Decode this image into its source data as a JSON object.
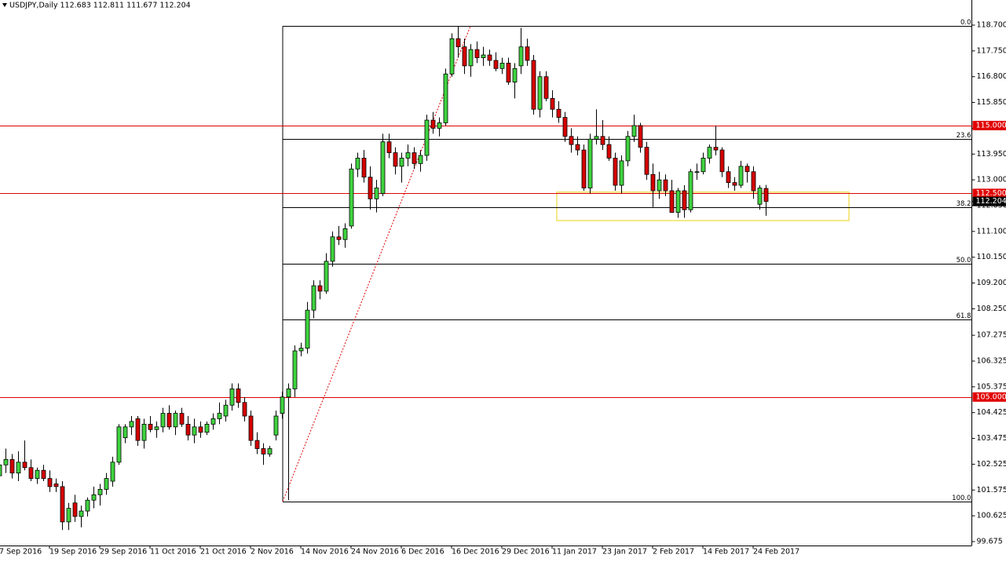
{
  "chart_data": {
    "type": "candlestick",
    "title": "USDJPY,Daily  112.683 112.811 111.677 112.204",
    "up_color": "#3fd33f",
    "down_color": "#d60000",
    "categories": [
      "7 Sep 2016",
      null,
      null,
      null,
      null,
      null,
      null,
      null,
      "19 Sep 2016",
      null,
      null,
      null,
      null,
      null,
      null,
      null,
      "29 Sep 2016",
      null,
      null,
      null,
      null,
      null,
      null,
      null,
      "11 Oct 2016",
      null,
      null,
      null,
      null,
      null,
      null,
      null,
      "21 Oct 2016",
      null,
      null,
      null,
      null,
      null,
      null,
      null,
      "2 Nov 2016",
      null,
      null,
      null,
      null,
      null,
      null,
      null,
      "14 Nov 2016",
      null,
      null,
      null,
      null,
      null,
      null,
      null,
      "24 Nov 2016",
      null,
      null,
      null,
      null,
      null,
      null,
      null,
      "6 Dec 2016",
      null,
      null,
      null,
      null,
      null,
      null,
      null,
      "16 Dec 2016",
      null,
      null,
      null,
      null,
      null,
      null,
      null,
      "29 Dec 2016",
      null,
      null,
      null,
      null,
      null,
      null,
      null,
      "11 Jan 2017",
      null,
      null,
      null,
      null,
      null,
      null,
      null,
      "23 Jan 2017",
      null,
      null,
      null,
      null,
      null,
      null,
      null,
      "2 Feb 2017",
      null,
      null,
      null,
      null,
      null,
      null,
      null,
      "14 Feb 2017",
      null,
      null,
      null,
      null,
      null,
      null,
      null,
      "24 Feb 2017",
      null,
      null
    ],
    "ohlc": [
      [
        102.1,
        102.7,
        101.8,
        102.5
      ],
      [
        102.5,
        103.1,
        102.2,
        102.7
      ],
      [
        102.7,
        102.9,
        102.0,
        102.2
      ],
      [
        102.2,
        103.0,
        101.9,
        102.6
      ],
      [
        102.6,
        103.4,
        102.3,
        102.4
      ],
      [
        102.4,
        102.7,
        101.9,
        102.0
      ],
      [
        102.0,
        102.4,
        101.8,
        102.3
      ],
      [
        102.3,
        102.5,
        101.9,
        102.0
      ],
      [
        102.0,
        102.3,
        101.5,
        101.7
      ],
      [
        101.8,
        102.0,
        101.5,
        101.7
      ],
      [
        101.7,
        101.9,
        100.1,
        100.4
      ],
      [
        100.4,
        101.1,
        100.1,
        100.9
      ],
      [
        101.1,
        101.4,
        100.4,
        100.6
      ],
      [
        100.6,
        101.0,
        100.2,
        100.8
      ],
      [
        100.8,
        101.3,
        100.6,
        101.2
      ],
      [
        101.2,
        101.7,
        100.9,
        101.4
      ],
      [
        101.4,
        101.8,
        101.0,
        101.6
      ],
      [
        101.6,
        102.2,
        101.4,
        102.0
      ],
      [
        101.9,
        102.8,
        101.7,
        102.6
      ],
      [
        102.6,
        104.0,
        102.5,
        103.9
      ],
      [
        103.5,
        104.0,
        103.3,
        103.9
      ],
      [
        103.9,
        104.3,
        103.6,
        104.1
      ],
      [
        104.2,
        104.3,
        103.2,
        103.4
      ],
      [
        103.4,
        104.2,
        103.1,
        104.0
      ],
      [
        104.0,
        104.3,
        103.7,
        103.8
      ],
      [
        103.8,
        104.1,
        103.5,
        103.9
      ],
      [
        103.9,
        104.6,
        103.7,
        104.4
      ],
      [
        104.4,
        104.7,
        103.8,
        103.9
      ],
      [
        103.9,
        104.5,
        103.6,
        104.4
      ],
      [
        104.4,
        104.6,
        103.9,
        104.0
      ],
      [
        104.0,
        104.3,
        103.4,
        103.6
      ],
      [
        103.6,
        104.2,
        103.3,
        103.9
      ],
      [
        103.9,
        104.1,
        103.5,
        103.7
      ],
      [
        103.7,
        104.1,
        103.6,
        104.0
      ],
      [
        104.0,
        104.4,
        103.8,
        104.2
      ],
      [
        104.2,
        104.8,
        104.0,
        104.4
      ],
      [
        104.3,
        104.9,
        104.1,
        104.7
      ],
      [
        104.7,
        105.5,
        104.5,
        105.3
      ],
      [
        105.3,
        105.5,
        104.6,
        104.8
      ],
      [
        104.8,
        105.0,
        104.1,
        104.3
      ],
      [
        104.3,
        104.5,
        103.2,
        103.4
      ],
      [
        103.4,
        103.7,
        102.9,
        103.1
      ],
      [
        103.1,
        103.3,
        102.5,
        102.9
      ],
      [
        102.9,
        103.2,
        102.8,
        103.1
      ],
      [
        103.6,
        104.5,
        103.4,
        104.3
      ],
      [
        104.4,
        105.2,
        104.2,
        105.0
      ],
      [
        105.0,
        105.5,
        101.2,
        105.3
      ],
      [
        105.3,
        106.9,
        105.0,
        106.7
      ],
      [
        106.7,
        107.0,
        106.5,
        106.8
      ],
      [
        106.8,
        108.5,
        106.6,
        108.2
      ],
      [
        108.2,
        109.3,
        107.9,
        109.1
      ],
      [
        109.1,
        109.3,
        108.6,
        108.9
      ],
      [
        108.9,
        110.3,
        108.8,
        110.0
      ],
      [
        110.0,
        111.1,
        109.8,
        110.9
      ],
      [
        110.9,
        111.3,
        110.6,
        110.8
      ],
      [
        110.8,
        111.4,
        110.5,
        111.2
      ],
      [
        111.3,
        113.6,
        111.2,
        113.4
      ],
      [
        113.4,
        114.0,
        113.1,
        113.8
      ],
      [
        113.8,
        114.1,
        112.9,
        113.1
      ],
      [
        113.1,
        113.5,
        111.9,
        112.3
      ],
      [
        112.3,
        113.0,
        111.8,
        112.7
      ],
      [
        112.5,
        114.7,
        112.4,
        114.4
      ],
      [
        114.4,
        114.7,
        113.8,
        114.0
      ],
      [
        114.0,
        114.2,
        113.2,
        113.5
      ],
      [
        113.5,
        114.0,
        112.9,
        113.8
      ],
      [
        113.8,
        114.3,
        113.5,
        114.0
      ],
      [
        114.0,
        114.2,
        113.4,
        113.6
      ],
      [
        113.6,
        114.1,
        113.3,
        113.9
      ],
      [
        113.9,
        115.4,
        113.7,
        115.2
      ],
      [
        115.2,
        115.5,
        114.7,
        114.9
      ],
      [
        114.9,
        115.3,
        114.6,
        115.1
      ],
      [
        115.1,
        117.1,
        115.0,
        116.9
      ],
      [
        116.9,
        118.4,
        116.8,
        118.2
      ],
      [
        118.2,
        118.66,
        117.5,
        117.9
      ],
      [
        117.9,
        118.2,
        116.9,
        117.2
      ],
      [
        117.2,
        118.0,
        116.8,
        117.8
      ],
      [
        117.8,
        118.1,
        117.3,
        117.5
      ],
      [
        117.5,
        117.9,
        117.2,
        117.6
      ],
      [
        117.6,
        117.8,
        117.2,
        117.4
      ],
      [
        117.4,
        117.7,
        117.0,
        117.1
      ],
      [
        117.1,
        117.5,
        116.9,
        117.3
      ],
      [
        117.3,
        117.5,
        116.5,
        116.6
      ],
      [
        116.6,
        117.3,
        116.0,
        117.1
      ],
      [
        117.2,
        118.6,
        116.9,
        117.9
      ],
      [
        117.9,
        118.2,
        117.2,
        117.4
      ],
      [
        117.4,
        117.6,
        115.4,
        115.6
      ],
      [
        115.6,
        117.0,
        115.3,
        116.8
      ],
      [
        116.8,
        117.0,
        115.9,
        116.0
      ],
      [
        116.0,
        116.3,
        115.3,
        115.6
      ],
      [
        115.6,
        115.9,
        115.1,
        115.3
      ],
      [
        115.3,
        115.5,
        114.4,
        114.6
      ],
      [
        114.6,
        114.9,
        114.0,
        114.3
      ],
      [
        114.3,
        114.6,
        113.9,
        114.1
      ],
      [
        114.1,
        114.3,
        112.6,
        112.7
      ],
      [
        112.7,
        114.7,
        112.5,
        114.5
      ],
      [
        114.5,
        115.6,
        114.3,
        114.6
      ],
      [
        114.6,
        115.2,
        114.1,
        114.3
      ],
      [
        114.3,
        114.6,
        113.7,
        113.8
      ],
      [
        113.8,
        114.0,
        112.6,
        112.8
      ],
      [
        112.8,
        113.9,
        112.5,
        113.7
      ],
      [
        113.7,
        114.8,
        113.5,
        114.6
      ],
      [
        114.6,
        115.4,
        114.4,
        115.0
      ],
      [
        115.0,
        115.1,
        114.0,
        114.2
      ],
      [
        114.2,
        114.4,
        113.0,
        113.2
      ],
      [
        113.2,
        113.6,
        112.0,
        112.6
      ],
      [
        112.6,
        113.3,
        112.3,
        113.0
      ],
      [
        113.0,
        113.2,
        112.4,
        112.6
      ],
      [
        112.6,
        113.0,
        111.8,
        111.8
      ],
      [
        111.8,
        112.7,
        111.6,
        112.6
      ],
      [
        112.6,
        112.8,
        111.6,
        111.9
      ],
      [
        111.9,
        113.4,
        111.8,
        113.3
      ],
      [
        113.3,
        113.6,
        113.0,
        113.3
      ],
      [
        113.3,
        114.0,
        113.2,
        113.8
      ],
      [
        113.8,
        114.3,
        113.6,
        114.2
      ],
      [
        114.2,
        115.0,
        113.9,
        114.1
      ],
      [
        114.1,
        114.2,
        113.1,
        113.3
      ],
      [
        113.3,
        113.5,
        112.7,
        112.9
      ],
      [
        112.9,
        113.1,
        112.6,
        112.8
      ],
      [
        112.8,
        113.7,
        112.7,
        113.5
      ],
      [
        113.5,
        113.6,
        112.9,
        113.3
      ],
      [
        113.3,
        113.5,
        112.3,
        112.6
      ],
      [
        112.1,
        112.8,
        111.9,
        112.7
      ],
      [
        112.683,
        112.811,
        111.677,
        112.204
      ]
    ],
    "ylim": [
      99.53,
      119.625
    ],
    "yticks": [
      {
        "value": 118.7,
        "label": "118.700"
      },
      {
        "value": 117.75,
        "label": "117.750"
      },
      {
        "value": 116.8,
        "label": "116.800"
      },
      {
        "value": 115.85,
        "label": "115.850"
      },
      {
        "value": 114.9,
        "label": "114.900"
      },
      {
        "value": 113.95,
        "label": "113.950"
      },
      {
        "value": 113.0,
        "label": "113.000"
      },
      {
        "value": 112.05,
        "label": "112.050"
      },
      {
        "value": 111.1,
        "label": "111.100"
      },
      {
        "value": 110.15,
        "label": "110.150"
      },
      {
        "value": 109.2,
        "label": "109.200"
      },
      {
        "value": 108.25,
        "label": "108.250"
      },
      {
        "value": 107.275,
        "label": "107.275"
      },
      {
        "value": 106.325,
        "label": "106.325"
      },
      {
        "value": 105.375,
        "label": "105.375"
      },
      {
        "value": 104.425,
        "label": "104.425"
      },
      {
        "value": 103.475,
        "label": "103.475"
      },
      {
        "value": 102.525,
        "label": "102.525"
      },
      {
        "value": 101.575,
        "label": "101.575"
      },
      {
        "value": 100.625,
        "label": "100.625"
      },
      {
        "value": 99.675,
        "label": "99.675"
      }
    ],
    "hlines": [
      {
        "value": 115.0,
        "label": "115.000",
        "color": "#e00000"
      },
      {
        "value": 112.5,
        "label": "112.500",
        "color": "#e00000"
      },
      {
        "value": 105.0,
        "label": "105.000",
        "color": "#e00000"
      }
    ],
    "last_price": {
      "value": 112.204,
      "label": "112.204"
    },
    "fibonacci": {
      "start_index": 45,
      "end_index": 75,
      "color": "#e00000",
      "levels": [
        {
          "label": "0.0",
          "value": 118.66
        },
        {
          "label": "23.6",
          "value": 114.51
        },
        {
          "label": "38.2",
          "value": 111.99
        },
        {
          "label": "50.0",
          "value": 109.91
        },
        {
          "label": "61.8",
          "value": 107.86
        },
        {
          "label": "100.0",
          "value": 101.15
        }
      ]
    },
    "zone": {
      "xlim": [
        88.75,
        135.25
      ],
      "ylim": [
        111.5,
        112.55
      ],
      "color": "#f0e060"
    }
  }
}
